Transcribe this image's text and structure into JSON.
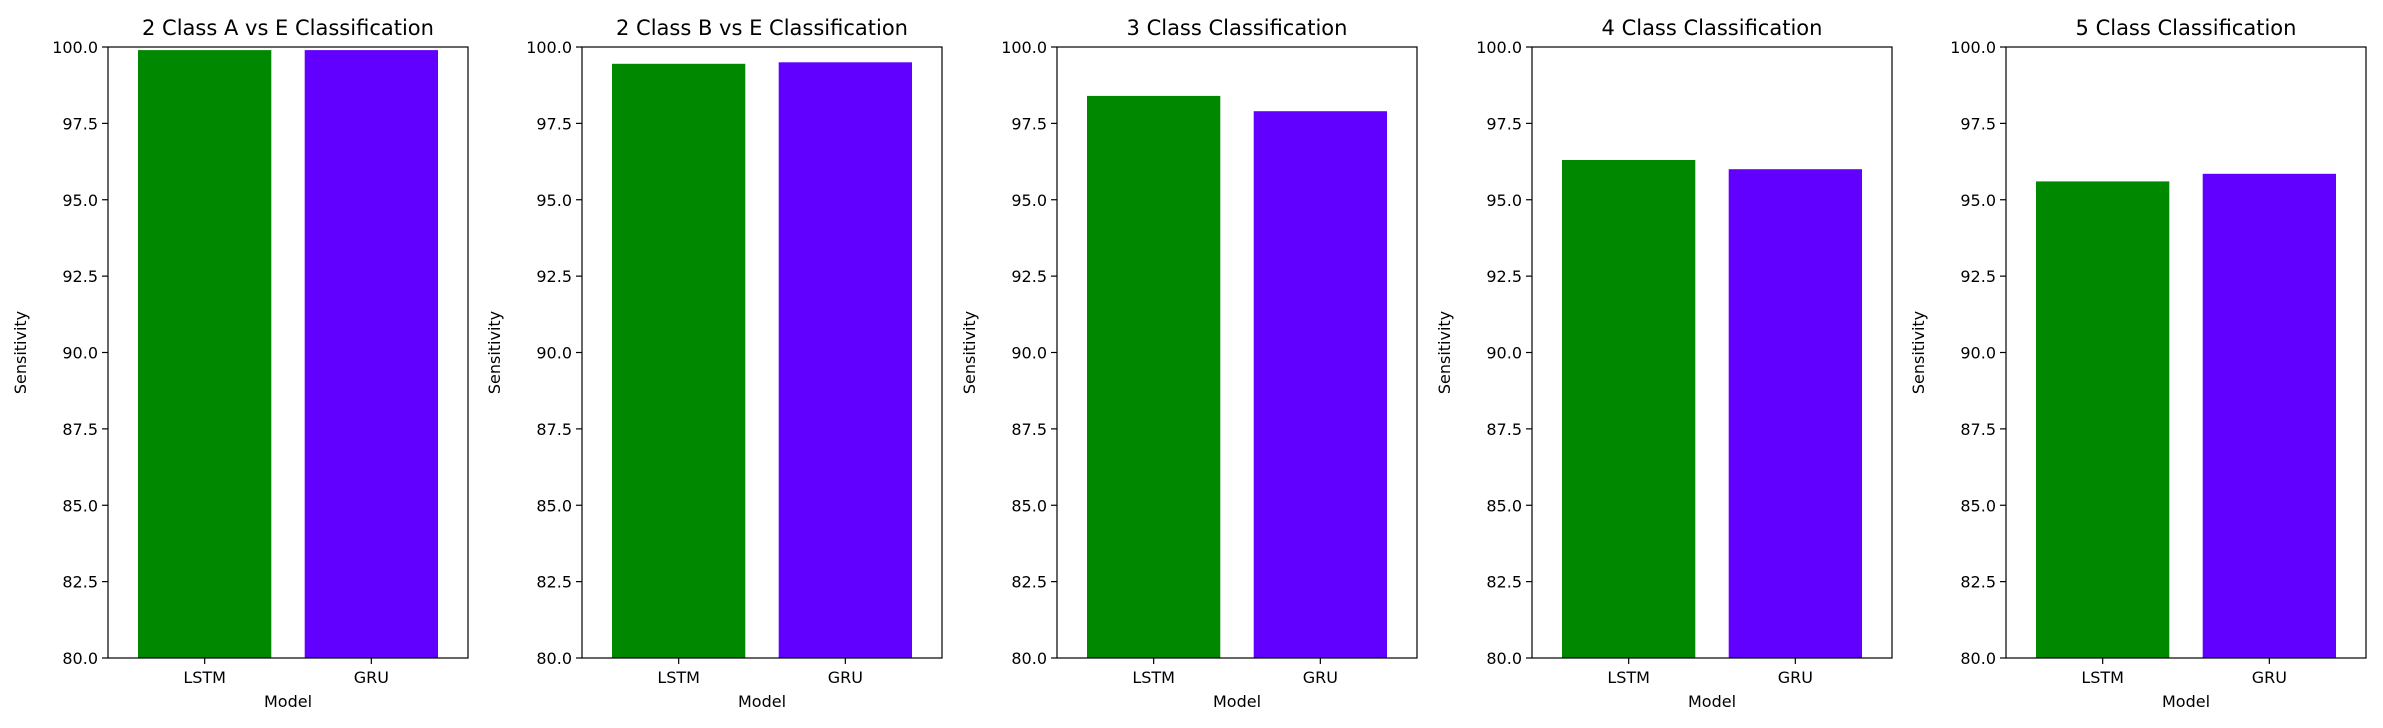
{
  "chart_data": [
    {
      "type": "bar",
      "title": "2 Class A vs E Classification",
      "xlabel": "Model",
      "ylabel": "Sensitivity",
      "categories": [
        "LSTM",
        "GRU"
      ],
      "values": [
        99.9,
        99.9
      ],
      "colors": [
        "#008800",
        "#6200ff"
      ],
      "ylim": [
        80,
        100
      ],
      "yticks": [
        "80.0",
        "82.5",
        "85.0",
        "87.5",
        "90.0",
        "92.5",
        "95.0",
        "97.5",
        "100.0"
      ],
      "grid": false
    },
    {
      "type": "bar",
      "title": "2 Class B vs E Classification",
      "xlabel": "Model",
      "ylabel": "Sensitivity",
      "categories": [
        "LSTM",
        "GRU"
      ],
      "values": [
        99.45,
        99.5
      ],
      "colors": [
        "#008800",
        "#6200ff"
      ],
      "ylim": [
        80,
        100
      ],
      "yticks": [
        "80.0",
        "82.5",
        "85.0",
        "87.5",
        "90.0",
        "92.5",
        "95.0",
        "97.5",
        "100.0"
      ],
      "grid": false
    },
    {
      "type": "bar",
      "title": "3 Class Classification",
      "xlabel": "Model",
      "ylabel": "Sensitivity",
      "categories": [
        "LSTM",
        "GRU"
      ],
      "values": [
        98.4,
        97.9
      ],
      "colors": [
        "#008800",
        "#6200ff"
      ],
      "ylim": [
        80,
        100
      ],
      "yticks": [
        "80.0",
        "82.5",
        "85.0",
        "87.5",
        "90.0",
        "92.5",
        "95.0",
        "97.5",
        "100.0"
      ],
      "grid": false
    },
    {
      "type": "bar",
      "title": "4 Class Classification",
      "xlabel": "Model",
      "ylabel": "Sensitivity",
      "categories": [
        "LSTM",
        "GRU"
      ],
      "values": [
        96.3,
        96.0
      ],
      "colors": [
        "#008800",
        "#6200ff"
      ],
      "ylim": [
        80,
        100
      ],
      "yticks": [
        "80.0",
        "82.5",
        "85.0",
        "87.5",
        "90.0",
        "92.5",
        "95.0",
        "97.5",
        "100.0"
      ],
      "grid": false
    },
    {
      "type": "bar",
      "title": "5 Class Classification",
      "xlabel": "Model",
      "ylabel": "Sensitivity",
      "categories": [
        "LSTM",
        "GRU"
      ],
      "values": [
        95.6,
        95.85
      ],
      "colors": [
        "#008800",
        "#6200ff"
      ],
      "ylim": [
        80,
        100
      ],
      "yticks": [
        "80.0",
        "82.5",
        "85.0",
        "87.5",
        "90.0",
        "92.5",
        "95.0",
        "97.5",
        "100.0"
      ],
      "grid": false
    }
  ]
}
